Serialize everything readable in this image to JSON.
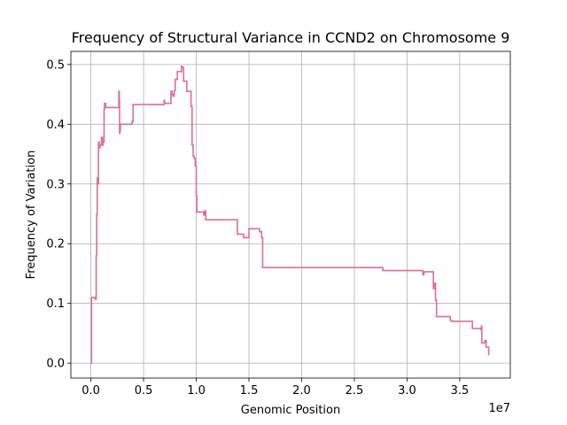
{
  "chart_data": {
    "type": "line",
    "title": "Frequency of Structural Variance in CCND2 on Chromosome 9",
    "xlabel": "Genomic Position",
    "ylabel": "Frequency of Variation",
    "x_offset_label": "1e7",
    "xlim": [
      -1900000,
      39800000
    ],
    "ylim": [
      -0.025,
      0.522
    ],
    "x_ticks": [
      0,
      5000000,
      10000000,
      15000000,
      20000000,
      25000000,
      30000000,
      35000000
    ],
    "x_tick_labels": [
      "0.0",
      "0.5",
      "1.0",
      "1.5",
      "2.0",
      "2.5",
      "3.0",
      "3.5"
    ],
    "y_ticks": [
      0.0,
      0.1,
      0.2,
      0.3,
      0.4,
      0.5
    ],
    "y_tick_labels": [
      "0.0",
      "0.1",
      "0.2",
      "0.3",
      "0.4",
      "0.5"
    ],
    "grid": true,
    "color": "#d9709b",
    "series": [
      {
        "step": "post",
        "x": [
          0,
          60000,
          400000,
          500000,
          550000,
          600000,
          650000,
          720000,
          780000,
          850000,
          1000000,
          1100000,
          1150000,
          1250000,
          1300000,
          1400000,
          2650000,
          2700000,
          2720000,
          2760000,
          2800000,
          3900000,
          4000000,
          6950000,
          7000000,
          7600000,
          7700000,
          7800000,
          7900000,
          8000000,
          8200000,
          8600000,
          8650000,
          8800000,
          9100000,
          9500000,
          9600000,
          9700000,
          9800000,
          9900000,
          10000000,
          10050000,
          10700000,
          10800000,
          10900000,
          11000000,
          13900000,
          14000000,
          14500000,
          15000000,
          16000000,
          16200000,
          16300000,
          27600000,
          27700000,
          31400000,
          31500000,
          31600000,
          32500000,
          32600000,
          32700000,
          32800000,
          33000000,
          34100000,
          34200000,
          36200000,
          37000000,
          37050000,
          37100000,
          37400000,
          37500000,
          37750000
        ],
        "y": [
          0.0,
          0.11,
          0.107,
          0.18,
          0.25,
          0.31,
          0.3,
          0.37,
          0.36,
          0.365,
          0.378,
          0.365,
          0.37,
          0.425,
          0.435,
          0.428,
          0.455,
          0.44,
          0.385,
          0.39,
          0.4,
          0.405,
          0.433,
          0.44,
          0.435,
          0.455,
          0.45,
          0.447,
          0.456,
          0.475,
          0.488,
          0.497,
          0.495,
          0.472,
          0.455,
          0.43,
          0.365,
          0.347,
          0.343,
          0.33,
          0.28,
          0.253,
          0.248,
          0.255,
          0.24,
          0.24,
          0.216,
          0.216,
          0.21,
          0.225,
          0.22,
          0.21,
          0.16,
          0.16,
          0.155,
          0.155,
          0.148,
          0.153,
          0.125,
          0.134,
          0.105,
          0.078,
          0.078,
          0.072,
          0.07,
          0.058,
          0.056,
          0.062,
          0.034,
          0.038,
          0.027,
          0.013
        ]
      }
    ]
  }
}
